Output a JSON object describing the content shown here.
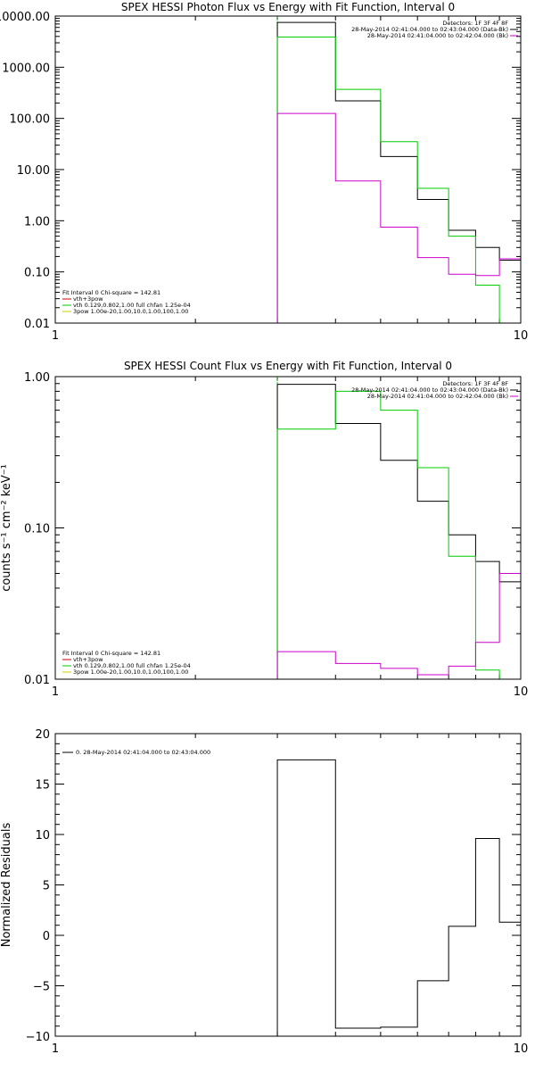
{
  "chart_data": [
    {
      "type": "line",
      "title": "SPEX HESSI Photon Flux vs Energy with Fit Function, Interval 0",
      "ylabel": "",
      "xlabel": "",
      "xscale": "log",
      "yscale": "log",
      "xlim": [
        1,
        10
      ],
      "ylim": [
        0.01,
        10000
      ],
      "x_ticks": [
        "1",
        "10"
      ],
      "y_ticks": [
        {
          "v": 10000,
          "label": "10000.00"
        },
        {
          "v": 1000,
          "label": "1000.00"
        },
        {
          "v": 100,
          "label": "100.00"
        },
        {
          "v": 10,
          "label": "10.00"
        },
        {
          "v": 1,
          "label": "1.00"
        },
        {
          "v": 0.1,
          "label": "0.10"
        },
        {
          "v": 0.01,
          "label": "0.01"
        }
      ],
      "bin_edges": [
        3,
        4,
        5,
        6,
        7,
        8,
        9,
        10
      ],
      "series": [
        {
          "name": "Data",
          "color": "#000000",
          "values": [
            7500,
            220,
            18,
            2.6,
            0.65,
            0.3,
            0.17
          ]
        },
        {
          "name": "vth+3pow",
          "color": "#00cc00",
          "values": [
            3900,
            370,
            35,
            4.3,
            0.5,
            0.055,
            0.002
          ]
        },
        {
          "name": "Background",
          "color": "#cc00cc",
          "values": [
            125,
            6,
            0.75,
            0.19,
            0.09,
            0.085,
            0.18
          ]
        }
      ],
      "vertical_line": {
        "x": 3,
        "color": "#00cc00"
      },
      "legend_top": [
        {
          "text": "Detectors: 1F 3F 4F 8F",
          "color": ""
        },
        {
          "text": "28-May-2014 02:41:04.000 to 02:43:04.000 (Data-Bk)",
          "color": "#000000"
        },
        {
          "text": "28-May-2014 02:41:04.000 to 02:42:04.000 (Bk)",
          "color": "#cc00cc"
        }
      ],
      "legend_bottom": [
        {
          "text": "Fit Interval 0   Chi-square = 142.81",
          "color": ""
        },
        {
          "text": "vth+3pow",
          "color": "#cc0000"
        },
        {
          "text": "vth 0.129,0.802,1.00  full chfan 1.25e-04",
          "color": "#00cc00"
        },
        {
          "text": "3pow 1.00e-20,1.00,10.0,1.00,100,1.00",
          "color": "#cccc00"
        }
      ]
    },
    {
      "type": "line",
      "title": "SPEX HESSI Count Flux vs Energy with Fit Function, Interval 0",
      "ylabel": "counts s⁻¹ cm⁻² keV⁻¹",
      "xlabel": "",
      "xscale": "log",
      "yscale": "log",
      "xlim": [
        1,
        10
      ],
      "ylim": [
        0.01,
        1
      ],
      "x_ticks": [
        "1",
        "10"
      ],
      "y_ticks": [
        {
          "v": 1,
          "label": "1.00"
        },
        {
          "v": 0.1,
          "label": "0.10"
        },
        {
          "v": 0.01,
          "label": "0.01"
        }
      ],
      "bin_edges": [
        3,
        4,
        5,
        6,
        7,
        8,
        9,
        10
      ],
      "series": [
        {
          "name": "Data",
          "color": "#000000",
          "values": [
            0.89,
            0.49,
            0.28,
            0.15,
            0.09,
            0.06,
            0.044
          ]
        },
        {
          "name": "vth+3pow",
          "color": "#00cc00",
          "values": [
            0.45,
            0.8,
            0.6,
            0.25,
            0.065,
            0.0115,
            0.005
          ]
        },
        {
          "name": "Background",
          "color": "#cc00cc",
          "values": [
            0.0152,
            0.0127,
            0.0118,
            0.0107,
            0.0122,
            0.0175,
            0.05
          ]
        }
      ],
      "vertical_line": {
        "x": 3,
        "color": "#00cc00"
      },
      "legend_top": [
        {
          "text": "Detectors: 1F 3F 4F 8F",
          "color": ""
        },
        {
          "text": "28-May-2014 02:41:04.000 to 02:43:04.000 (Data-Bk)",
          "color": "#000000"
        },
        {
          "text": "28-May-2014 02:41:04.000 to 02:42:04.000 (Bk)",
          "color": "#cc00cc"
        }
      ],
      "legend_bottom": [
        {
          "text": "Fit Interval 0   Chi-square = 142.81",
          "color": ""
        },
        {
          "text": "vth+3pow",
          "color": "#cc0000"
        },
        {
          "text": "vth 0.129,0.802,1.00  full chfan 1.25e-04",
          "color": "#00cc00"
        },
        {
          "text": "3pow 1.00e-20,1.00,10.0,1.00,100,1.00",
          "color": "#cccc00"
        }
      ]
    },
    {
      "type": "line",
      "title": "",
      "ylabel": "Normalized Residuals",
      "xlabel": "",
      "xscale": "log",
      "yscale": "linear",
      "xlim": [
        1,
        10
      ],
      "ylim": [
        -10,
        20
      ],
      "x_ticks": [
        "1",
        "10"
      ],
      "y_ticks": [
        {
          "v": 20,
          "label": "20"
        },
        {
          "v": 15,
          "label": "15"
        },
        {
          "v": 10,
          "label": "10"
        },
        {
          "v": 5,
          "label": "5"
        },
        {
          "v": 0,
          "label": "0"
        },
        {
          "v": -5,
          "label": "−5"
        },
        {
          "v": -10,
          "label": "−10"
        }
      ],
      "bin_edges": [
        3,
        4,
        5,
        6,
        7,
        8,
        9,
        10
      ],
      "series": [
        {
          "name": "0. 28-May-2014 02:41:04.000 to 02:43:04.000",
          "color": "#000000",
          "values": [
            17.4,
            -9.2,
            -9.1,
            -4.5,
            0.9,
            9.6,
            1.3
          ]
        }
      ],
      "vertical_line": null,
      "legend_top": [
        {
          "text": "0. 28-May-2014 02:41:04.000 to 02:43:04.000",
          "color": "#000000"
        }
      ],
      "legend_bottom": []
    }
  ]
}
